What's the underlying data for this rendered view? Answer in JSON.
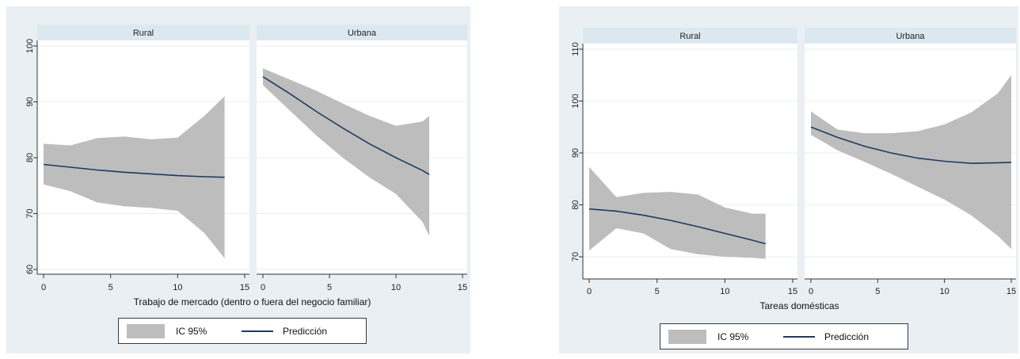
{
  "chart_data": [
    {
      "type": "area",
      "panels": [
        "Rural",
        "Urbana"
      ],
      "xlabel": "Trabajo de mercado (dentro o fuera del negocio familiar)",
      "ylabel": "",
      "xlim": [
        0,
        15
      ],
      "ylim": [
        60,
        100
      ],
      "xticks": [
        "0",
        "5",
        "10",
        "15"
      ],
      "yticks": [
        "60",
        "70",
        "80",
        "90",
        "100"
      ],
      "legend": [
        "IC 95%",
        "Predicción"
      ],
      "legend_position": "bottom",
      "grid": true,
      "colors": {
        "band": "#bdbdbd",
        "line": "#1f3b60",
        "strip": "#dce8ef",
        "plot_bg": "#ffffff",
        "outer_bg": "#eaeff3"
      },
      "series": [
        {
          "panel": "Rural",
          "x": [
            0,
            2,
            4,
            6,
            8,
            10,
            12,
            13.5
          ],
          "prediction": [
            78.8,
            78.3,
            77.8,
            77.4,
            77.1,
            76.8,
            76.6,
            76.5
          ],
          "lower": [
            75.2,
            74.0,
            72.0,
            71.3,
            71.0,
            70.5,
            66.5,
            62.0
          ],
          "upper": [
            82.5,
            82.2,
            83.5,
            83.8,
            83.3,
            83.6,
            87.5,
            91.0
          ]
        },
        {
          "panel": "Urbana",
          "x": [
            0,
            2,
            4,
            6,
            8,
            10,
            12,
            12.5
          ],
          "prediction": [
            94.5,
            91.5,
            88.3,
            85.3,
            82.5,
            80.0,
            77.7,
            77.0
          ],
          "lower": [
            93.0,
            88.5,
            84.0,
            80.0,
            76.5,
            73.5,
            68.5,
            66.0
          ],
          "upper": [
            96.0,
            94.0,
            92.0,
            89.7,
            87.5,
            85.7,
            86.5,
            87.5
          ]
        }
      ]
    },
    {
      "type": "area",
      "panels": [
        "Rural",
        "Urbana"
      ],
      "xlabel": "Tareas domésticas",
      "ylabel": "",
      "xlim": [
        0,
        15
      ],
      "ylim": [
        70,
        110
      ],
      "xticks": [
        "0",
        "5",
        "10",
        "15"
      ],
      "yticks": [
        "70",
        "80",
        "90",
        "100",
        "110"
      ],
      "legend": [
        "IC 95%",
        "Predicción"
      ],
      "legend_position": "bottom",
      "grid": true,
      "colors": {
        "band": "#bdbdbd",
        "line": "#1f3b60",
        "strip": "#dce8ef",
        "plot_bg": "#ffffff",
        "outer_bg": "#eaeff3"
      },
      "series": [
        {
          "panel": "Rural",
          "x": [
            0,
            2,
            4,
            6,
            8,
            10,
            12,
            13
          ],
          "prediction": [
            79.2,
            78.8,
            78.0,
            77.0,
            75.8,
            74.5,
            73.2,
            72.5
          ],
          "lower": [
            71.2,
            75.5,
            74.5,
            71.5,
            70.5,
            70.0,
            69.8,
            69.6
          ],
          "upper": [
            87.3,
            81.5,
            82.3,
            82.5,
            82.0,
            79.5,
            78.3,
            78.3
          ]
        },
        {
          "panel": "Urbana",
          "x": [
            0,
            2,
            4,
            6,
            8,
            10,
            12,
            14,
            15
          ],
          "prediction": [
            95.0,
            93.0,
            91.3,
            90.0,
            89.0,
            88.4,
            88.0,
            88.1,
            88.2
          ],
          "lower": [
            93.5,
            90.5,
            88.3,
            86.0,
            83.5,
            81.0,
            78.0,
            74.0,
            71.5
          ],
          "upper": [
            98.0,
            94.5,
            93.8,
            93.8,
            94.2,
            95.5,
            97.8,
            101.5,
            105.0
          ]
        }
      ]
    }
  ]
}
